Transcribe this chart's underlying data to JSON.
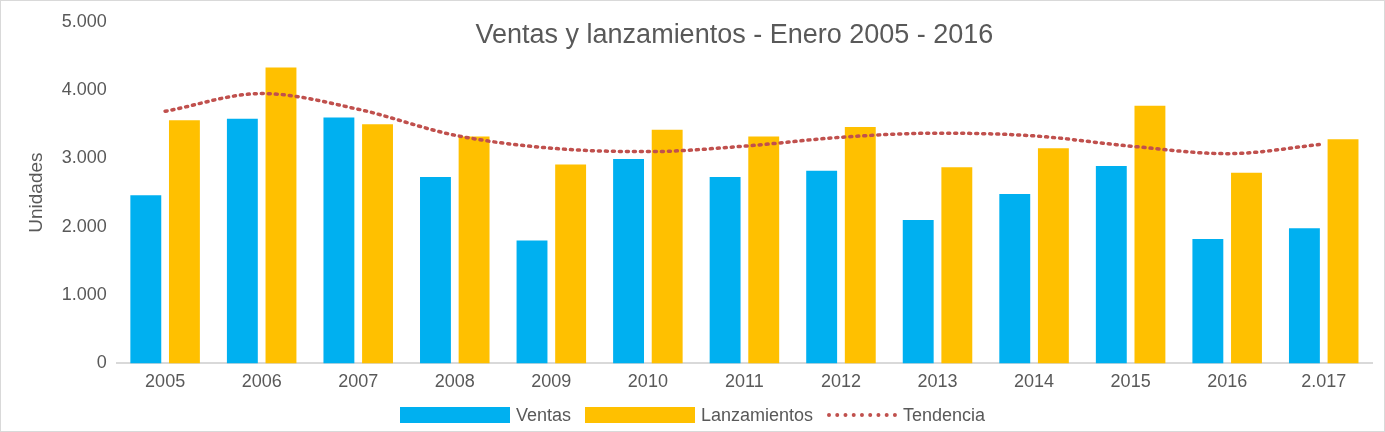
{
  "chart_data": {
    "type": "bar",
    "title": "Ventas y lanzamientos - Enero 2005 - 2016",
    "ylabel": "Unidades",
    "categories": [
      "2005",
      "2006",
      "2007",
      "2008",
      "2009",
      "2010",
      "2011",
      "2012",
      "2013",
      "2014",
      "2015",
      "2016",
      "2.017"
    ],
    "series": [
      {
        "name": "Ventas",
        "color": "#00b0f0",
        "values": [
          2460,
          3580,
          3600,
          2730,
          1800,
          2990,
          2730,
          2820,
          2100,
          2480,
          2890,
          1820,
          1980
        ]
      },
      {
        "name": "Lanzamientos",
        "color": "#ffc000",
        "values": [
          3560,
          4330,
          3500,
          3320,
          2910,
          3420,
          3320,
          3460,
          2870,
          3150,
          3770,
          2790,
          3280
        ]
      },
      {
        "name": "Tendencia",
        "type": "line",
        "color": "#c0504d",
        "line_style": "dotted",
        "marker": "none",
        "values": [
          3690,
          3950,
          3720,
          3340,
          3150,
          3100,
          3180,
          3310,
          3370,
          3330,
          3180,
          3070,
          3210
        ]
      }
    ],
    "ylim": [
      0,
      5000
    ],
    "yticks": [
      {
        "value": 0,
        "label": "0"
      },
      {
        "value": 1000,
        "label": "1.000"
      },
      {
        "value": 2000,
        "label": "2.000"
      },
      {
        "value": 3000,
        "label": "3.000"
      },
      {
        "value": 4000,
        "label": "4.000"
      },
      {
        "value": 5000,
        "label": "5.000"
      }
    ],
    "grid": false,
    "legend": "bottom"
  }
}
